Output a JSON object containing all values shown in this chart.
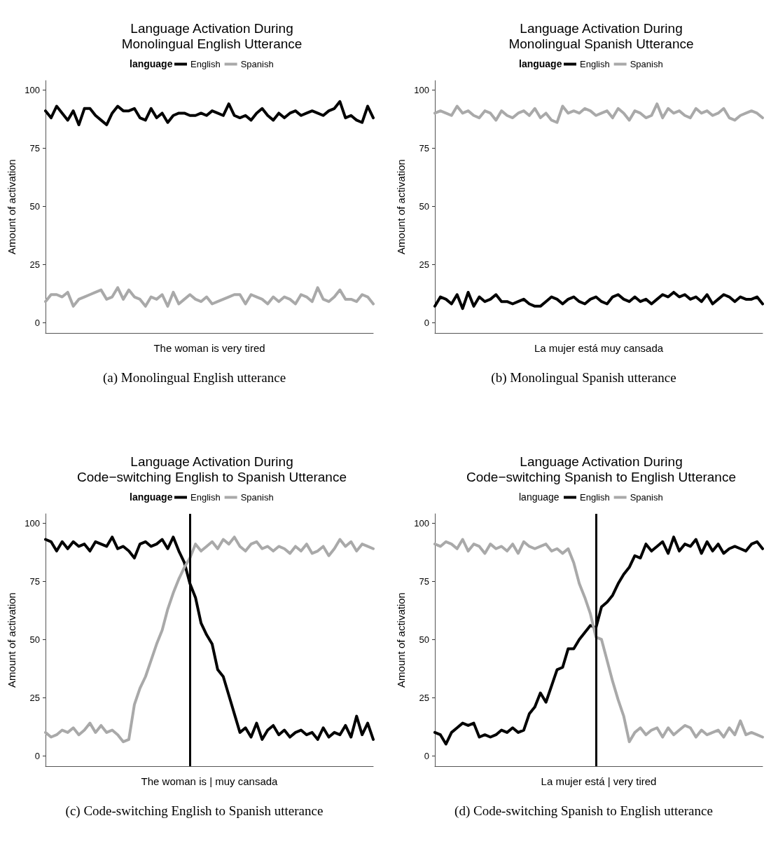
{
  "chart_data": [
    {
      "type": "line",
      "title": "Language Activation During\nMonolingual English Utterance",
      "xlabel": "The woman is very tired",
      "ylabel": "Amount of activation",
      "legend_title": "language",
      "annotations": [
        "(a) Monolingual English utterance"
      ],
      "categories": [
        null,
        null,
        null,
        null,
        null,
        null,
        null,
        null,
        null,
        null,
        null,
        null,
        null,
        null,
        null,
        null,
        null,
        null,
        null,
        null,
        null,
        null,
        null,
        null,
        null,
        null,
        null,
        null,
        null,
        null,
        null,
        null,
        null,
        null,
        null,
        null,
        null,
        null,
        null,
        null,
        null,
        null,
        null,
        null,
        null,
        null,
        null,
        null,
        null,
        null,
        null,
        null,
        null,
        null,
        null,
        null,
        null,
        null,
        null,
        null
      ],
      "series": [
        {
          "name": "English",
          "color": "#000000",
          "values": [
            91,
            88,
            93,
            90,
            87,
            91,
            85,
            92,
            92,
            89,
            87,
            85,
            90,
            93,
            91,
            91,
            92,
            88,
            87,
            92,
            88,
            90,
            86,
            89,
            90,
            90,
            89,
            89,
            90,
            89,
            91,
            90,
            89,
            94,
            89,
            88,
            89,
            87,
            90,
            92,
            89,
            87,
            90,
            88,
            90,
            91,
            89,
            90,
            91,
            90,
            89,
            91,
            92,
            95,
            88,
            89,
            87,
            86,
            93,
            88
          ]
        },
        {
          "name": "Spanish",
          "color": "#a9a9a9",
          "values": [
            9,
            12,
            12,
            11,
            13,
            7,
            10,
            11,
            12,
            13,
            14,
            10,
            11,
            15,
            10,
            14,
            11,
            10,
            7,
            11,
            10,
            12,
            7,
            13,
            8,
            10,
            12,
            10,
            9,
            11,
            8,
            9,
            10,
            11,
            12,
            12,
            8,
            12,
            11,
            10,
            8,
            11,
            9,
            11,
            10,
            8,
            12,
            11,
            9,
            15,
            10,
            9,
            11,
            14,
            10,
            10,
            9,
            12,
            11,
            8
          ]
        }
      ],
      "ylim": [
        -4.5,
        104
      ],
      "yticks": [
        0,
        25,
        50,
        75,
        100
      ],
      "grid": false,
      "legend": "top",
      "line_style": "solid",
      "tick_labels": "y"
    },
    {
      "type": "line",
      "title": "Language Activation During\nMonolingual Spanish Utterance",
      "xlabel": "La mujer está muy cansada",
      "ylabel": "Amount of activation",
      "legend_title": "language",
      "annotations": [
        "(b) Monolingual Spanish utterance"
      ],
      "categories": [
        null,
        null,
        null,
        null,
        null,
        null,
        null,
        null,
        null,
        null,
        null,
        null,
        null,
        null,
        null,
        null,
        null,
        null,
        null,
        null,
        null,
        null,
        null,
        null,
        null,
        null,
        null,
        null,
        null,
        null,
        null,
        null,
        null,
        null,
        null,
        null,
        null,
        null,
        null,
        null,
        null,
        null,
        null,
        null,
        null,
        null,
        null,
        null,
        null,
        null,
        null,
        null,
        null,
        null,
        null,
        null,
        null,
        null,
        null,
        null
      ],
      "series": [
        {
          "name": "English",
          "color": "#000000",
          "values": [
            7,
            11,
            10,
            8,
            12,
            6,
            13,
            7,
            11,
            9,
            10,
            12,
            9,
            9,
            8,
            9,
            10,
            8,
            7,
            7,
            9,
            11,
            10,
            8,
            10,
            11,
            9,
            8,
            10,
            11,
            9,
            8,
            11,
            12,
            10,
            9,
            11,
            9,
            10,
            8,
            10,
            12,
            11,
            13,
            11,
            12,
            10,
            11,
            9,
            12,
            8,
            10,
            12,
            11,
            9,
            11,
            10,
            10,
            11,
            8
          ]
        },
        {
          "name": "Spanish",
          "color": "#a9a9a9",
          "values": [
            90,
            91,
            90,
            89,
            93,
            90,
            91,
            89,
            88,
            91,
            90,
            87,
            91,
            89,
            88,
            90,
            91,
            89,
            92,
            88,
            90,
            87,
            86,
            93,
            90,
            91,
            90,
            92,
            91,
            89,
            90,
            91,
            88,
            92,
            90,
            87,
            91,
            90,
            88,
            89,
            94,
            88,
            92,
            90,
            91,
            89,
            88,
            92,
            90,
            91,
            89,
            90,
            92,
            88,
            87,
            89,
            90,
            91,
            90,
            88
          ]
        }
      ],
      "ylim": [
        -4.5,
        104
      ],
      "yticks": [
        0,
        25,
        50,
        75,
        100
      ],
      "grid": false,
      "legend": "top",
      "line_style": "solid",
      "tick_labels": "y"
    },
    {
      "type": "line",
      "title": "Language Activation During\nCode−switching English to Spanish Utterance",
      "xlabel": "The woman is | muy cansada",
      "ylabel": "Amount of activation",
      "legend_title": "language",
      "annotations": [
        "(c) Code-switching English to Spanish utterance"
      ],
      "categories": [
        null,
        null,
        null,
        null,
        null,
        null,
        null,
        null,
        null,
        null,
        null,
        null,
        null,
        null,
        null,
        null,
        null,
        null,
        null,
        null,
        null,
        null,
        null,
        null,
        null,
        null,
        null,
        null,
        null,
        null,
        null,
        null,
        null,
        null,
        null,
        null,
        null,
        null,
        null,
        null,
        null,
        null,
        null,
        null,
        null,
        null,
        null,
        null,
        null,
        null,
        null,
        null,
        null,
        null,
        null,
        null,
        null,
        null,
        null,
        null
      ],
      "series": [
        {
          "name": "English",
          "color": "#000000",
          "values": [
            93,
            92,
            88,
            92,
            89,
            92,
            90,
            91,
            88,
            92,
            91,
            90,
            94,
            89,
            90,
            88,
            85,
            91,
            92,
            90,
            91,
            93,
            89,
            94,
            88,
            83,
            74,
            68,
            57,
            52,
            48,
            37,
            34,
            26,
            18,
            10,
            12,
            8,
            14,
            7,
            11,
            13,
            9,
            11,
            8,
            10,
            11,
            9,
            10,
            7,
            12,
            8,
            10,
            9,
            13,
            8,
            17,
            9,
            14,
            7
          ]
        },
        {
          "name": "Spanish",
          "color": "#a9a9a9",
          "values": [
            10,
            8,
            9,
            11,
            10,
            12,
            9,
            11,
            14,
            10,
            13,
            10,
            11,
            9,
            6,
            7,
            22,
            29,
            34,
            41,
            48,
            54,
            63,
            70,
            76,
            81,
            85,
            91,
            88,
            90,
            92,
            89,
            93,
            91,
            94,
            90,
            88,
            91,
            92,
            89,
            90,
            88,
            90,
            89,
            87,
            90,
            88,
            91,
            87,
            88,
            90,
            86,
            89,
            93,
            90,
            92,
            88,
            91,
            90,
            89
          ]
        }
      ],
      "ylim": [
        -4.5,
        104
      ],
      "yticks": [
        0,
        25,
        50,
        75,
        100
      ],
      "grid": false,
      "legend": "top",
      "line_style": "solid",
      "tick_labels": "y"
    },
    {
      "type": "line",
      "title": "Language Activation During\nCode−switching Spanish to English Utterance",
      "xlabel": "La mujer está | very tired",
      "ylabel": "Amount of activation",
      "legend_title": "language",
      "annotations": [
        "(d) Code-switching Spanish to English utterance"
      ],
      "categories": [
        null,
        null,
        null,
        null,
        null,
        null,
        null,
        null,
        null,
        null,
        null,
        null,
        null,
        null,
        null,
        null,
        null,
        null,
        null,
        null,
        null,
        null,
        null,
        null,
        null,
        null,
        null,
        null,
        null,
        null,
        null,
        null,
        null,
        null,
        null,
        null,
        null,
        null,
        null,
        null,
        null,
        null,
        null,
        null,
        null,
        null,
        null,
        null,
        null,
        null,
        null,
        null,
        null,
        null,
        null,
        null,
        null,
        null,
        null,
        null
      ],
      "series": [
        {
          "name": "English",
          "color": "#000000",
          "values": [
            10,
            9,
            5,
            10,
            12,
            14,
            13,
            14,
            8,
            9,
            8,
            9,
            11,
            10,
            12,
            10,
            11,
            18,
            21,
            27,
            23,
            30,
            37,
            38,
            46,
            46,
            50,
            53,
            56,
            55,
            64,
            66,
            69,
            74,
            78,
            81,
            86,
            85,
            91,
            88,
            90,
            92,
            87,
            94,
            88,
            91,
            90,
            93,
            87,
            92,
            88,
            91,
            87,
            89,
            90,
            89,
            88,
            91,
            92,
            89
          ]
        },
        {
          "name": "Spanish",
          "color": "#a9a9a9",
          "values": [
            91,
            90,
            92,
            91,
            89,
            93,
            88,
            91,
            90,
            87,
            91,
            89,
            90,
            88,
            91,
            87,
            92,
            90,
            89,
            90,
            91,
            88,
            89,
            87,
            89,
            83,
            74,
            68,
            61,
            51,
            50,
            41,
            32,
            24,
            17,
            6,
            10,
            12,
            9,
            11,
            12,
            8,
            12,
            9,
            11,
            13,
            12,
            8,
            11,
            9,
            10,
            11,
            8,
            12,
            9,
            15,
            9,
            10,
            9,
            8
          ]
        }
      ],
      "ylim": [
        -4.5,
        104
      ],
      "yticks": [
        0,
        25,
        50,
        75,
        100
      ],
      "grid": false,
      "legend": "top",
      "line_style": "solid",
      "tick_labels": "y"
    }
  ]
}
